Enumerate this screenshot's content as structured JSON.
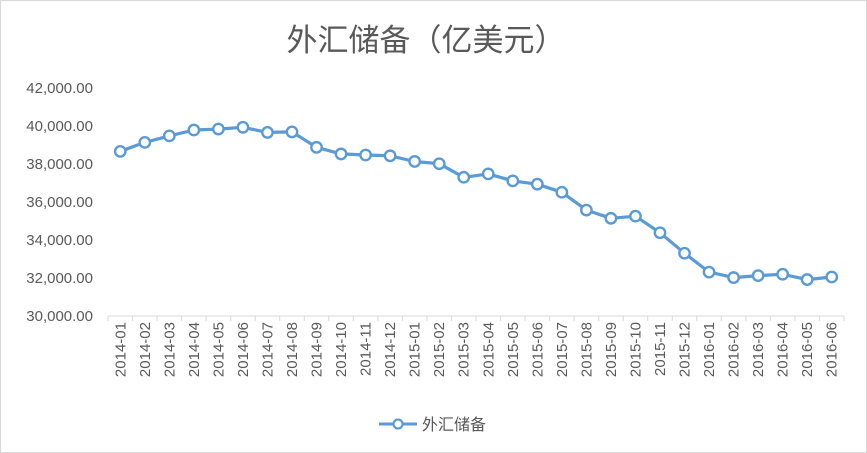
{
  "chart_data": {
    "type": "line",
    "title": "外汇储备（亿美元）",
    "xlabel": "",
    "ylabel": "",
    "ylim": [
      30000,
      42000
    ],
    "y_ticks": [
      "30,000.00",
      "32,000.00",
      "34,000.00",
      "36,000.00",
      "38,000.00",
      "40,000.00",
      "42,000.00"
    ],
    "y_tick_values": [
      30000,
      32000,
      34000,
      36000,
      38000,
      40000,
      42000
    ],
    "grid": false,
    "legend_position": "bottom",
    "color": "#5b9bd5",
    "categories": [
      "2014-01",
      "2014-02",
      "2014-03",
      "2014-04",
      "2014-05",
      "2014-06",
      "2014-07",
      "2014-08",
      "2014-09",
      "2014-10",
      "2014-11",
      "2014-12",
      "2015-01",
      "2015-02",
      "2015-03",
      "2015-04",
      "2015-05",
      "2015-06",
      "2015-07",
      "2015-08",
      "2015-09",
      "2015-10",
      "2015-11",
      "2015-12",
      "2016-01",
      "2016-02",
      "2016-03",
      "2016-04",
      "2016-05",
      "2016-06"
    ],
    "series": [
      {
        "name": "外汇储备",
        "values": [
          38666,
          39137,
          39481,
          39788,
          39839,
          39932,
          39662,
          39688,
          38877,
          38529,
          38473,
          38430,
          38134,
          38015,
          37301,
          37481,
          37111,
          36938,
          36513,
          35574,
          35141,
          35255,
          34383,
          33304,
          32309,
          32023,
          32126,
          32197,
          31917,
          32052
        ]
      }
    ]
  }
}
